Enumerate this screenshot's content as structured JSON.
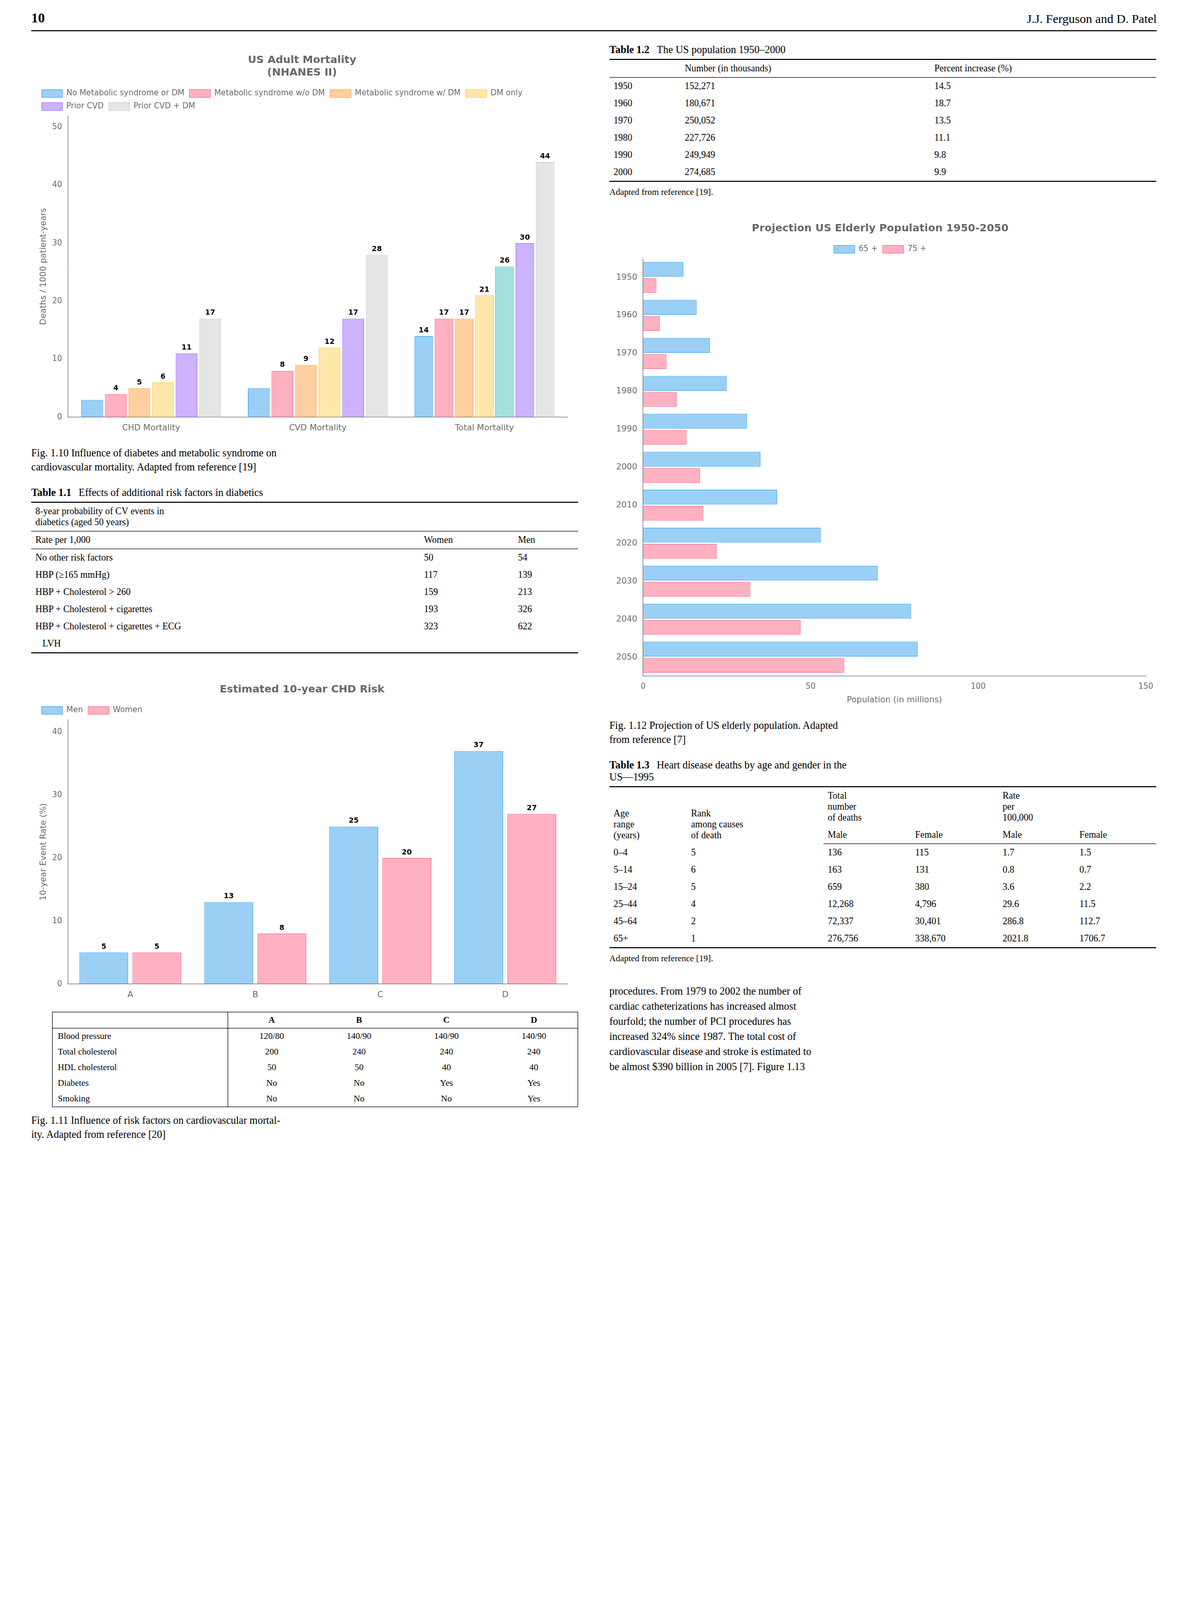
{
  "page_number": "10",
  "page_header_right": "J.J. Ferguson and D. Patel",
  "chart_data": [
    {
      "type": "bar",
      "title": "US Adult Mortality\n(NHANES II)",
      "ylabel": "Deaths / 1000 patient-years",
      "categories": [
        "CHD Mortality",
        "CVD Mortality",
        "Total Mortality"
      ],
      "series": [
        {
          "name": "No Metabolic syndrome or DM",
          "values": [
            3,
            5,
            14
          ],
          "value_labels": [
            null,
            null,
            "14"
          ]
        },
        {
          "name": "Metabolic syndrome w/o DM",
          "values": [
            4,
            8,
            17
          ]
        },
        {
          "name": "Metabolic syndrome w/ DM",
          "values": [
            5,
            9,
            17
          ]
        },
        {
          "name": "DM only",
          "values": [
            6,
            12,
            21
          ]
        },
        {
          "values": [
            null,
            null,
            26
          ]
        },
        {
          "name": "Prior CVD",
          "values": [
            11,
            17,
            30
          ]
        },
        {
          "name": "Prior CVD + DM",
          "values": [
            17,
            28,
            44
          ]
        }
      ],
      "ylim": [
        0,
        52
      ],
      "yticks": [
        0,
        10,
        20,
        30,
        40,
        50
      ],
      "grid": false,
      "legend": "upper left",
      "data_labels": true,
      "caption": "Fig. 1.10  Influence of diabetes and metabolic syndrome on\ncardiovascular mortality. Adapted from reference [19]"
    },
    {
      "type": "bar",
      "title": "Estimated 10-year CHD Risk",
      "ylabel": "10-year Event Rate (%)",
      "categories": [
        "A",
        "B",
        "C",
        "D"
      ],
      "series": [
        {
          "name": "Men",
          "values": [
            5,
            13,
            25,
            37
          ]
        },
        {
          "name": "Women",
          "values": [
            5,
            8,
            20,
            27
          ]
        }
      ],
      "ylim": [
        0,
        42
      ],
      "yticks": [
        0,
        10,
        20,
        30,
        40
      ],
      "grid": false,
      "legend": "upper left",
      "data_labels": true,
      "table_rows": [
        [
          "Blood pressure",
          "120/80",
          "140/90",
          "140/90",
          "140/90"
        ],
        [
          "Total cholesterol",
          "200",
          "240",
          "240",
          "240"
        ],
        [
          "HDL cholesterol",
          "50",
          "50",
          "40",
          "40"
        ],
        [
          "Diabetes",
          "No",
          "No",
          "Yes",
          "Yes"
        ],
        [
          "Smoking",
          "No",
          "No",
          "No",
          "Yes"
        ]
      ],
      "caption": "Fig. 1.11  Influence of risk factors on cardiovascular mortal-\nity. Adapted from reference [20]"
    },
    {
      "type": "bar",
      "orientation": "horizontal",
      "title": "Projection US Elderly Population 1950-2050",
      "xlabel": "Population (in millions)",
      "categories": [
        "1950",
        "1960",
        "1970",
        "1980",
        "1990",
        "2000",
        "2010",
        "2020",
        "2030",
        "2040",
        "2050"
      ],
      "series": [
        {
          "name": "65 +",
          "values": [
            12,
            16,
            20,
            25,
            31,
            35,
            40,
            53,
            70,
            80,
            82
          ]
        },
        {
          "name": "75 +",
          "values": [
            4,
            5,
            7,
            10,
            13,
            17,
            18,
            22,
            32,
            47,
            60
          ]
        }
      ],
      "xlim": [
        0,
        150
      ],
      "xticks": [
        0,
        50,
        100,
        150
      ],
      "grid": false,
      "legend": "upper center",
      "caption": "Fig. 1.12  Projection of US elderly population. Adapted\nfrom reference [7]"
    }
  ],
  "tables": [
    {
      "title": "Table 1.1",
      "subtitle": "Effects of additional risk factors in diabetics",
      "subheader": [
        "8-year probability of CV events in",
        "diabetics (aged 50 years)"
      ],
      "columns": [
        "Rate per 1,000",
        "Women",
        "Men"
      ],
      "rows": [
        [
          "No other risk factors",
          "50",
          "54"
        ],
        [
          "HBP (≥165 mmHg)",
          "117",
          "139"
        ],
        [
          "HBP + Cholesterol > 260",
          "159",
          "213"
        ],
        [
          "HBP + Cholesterol + cigarettes",
          "193",
          "326"
        ],
        [
          "HBP + Cholesterol + cigarettes + ECG",
          "323",
          "622"
        ],
        [
          "   LVH",
          null,
          null
        ]
      ]
    },
    {
      "title": "Table 1.2",
      "subtitle": "The US population 1950–2000",
      "columns": [
        null,
        "Number (in thousands)",
        "Percent increase (%)"
      ],
      "rows": [
        [
          "1950",
          "152,271",
          "14.5"
        ],
        [
          "1960",
          "180,671",
          "18.7"
        ],
        [
          "1970",
          "250,052",
          "13.5"
        ],
        [
          "1980",
          "227,726",
          "11.1"
        ],
        [
          "1990",
          "249,949",
          "9.8"
        ],
        [
          "2000",
          "274,685",
          "9.9"
        ]
      ],
      "footnote": "Adapted from reference [19]."
    },
    {
      "title": "Table 1.3",
      "subtitle": "Heart disease deaths by age and gender in the\nUS—1995",
      "columns": [
        "Age\nrange\n(years)",
        "Rank\namong causes\nof death",
        {
          "label": "Total\nnumber\nof deaths",
          "sub": [
            "Male",
            "Female"
          ]
        },
        {
          "label": "Rate\nper\n100,000",
          "sub": [
            "Male",
            "Female"
          ]
        }
      ],
      "rows": [
        [
          "0–4",
          "5",
          "136",
          "115",
          "1.7",
          "1.5"
        ],
        [
          "5–14",
          "6",
          "163",
          "131",
          "0.8",
          "0.7"
        ],
        [
          "15–24",
          "5",
          "659",
          "380",
          "3.6",
          "2.2"
        ],
        [
          "25–44",
          "4",
          "12,268",
          "4,796",
          "29.6",
          "11.5"
        ],
        [
          "45–64",
          "2",
          "72,337",
          "30,401",
          "286.8",
          "112.7"
        ],
        [
          "65+",
          "1",
          "276,756",
          "338,670",
          "2021.8",
          "1706.7"
        ]
      ],
      "footnote": "Adapted from reference [19]."
    }
  ],
  "body_text": "procedures. From 1979 to 2002 the number of\ncardiac catheterizations has increased almost\nfourfold; the number of PCI procedures has\nincreased 324% since 1987. The total cost of\ncardiovascular disease and stroke is estimated to\nbe almost $390 billion in 2005 [7]. Figure 1.13"
}
